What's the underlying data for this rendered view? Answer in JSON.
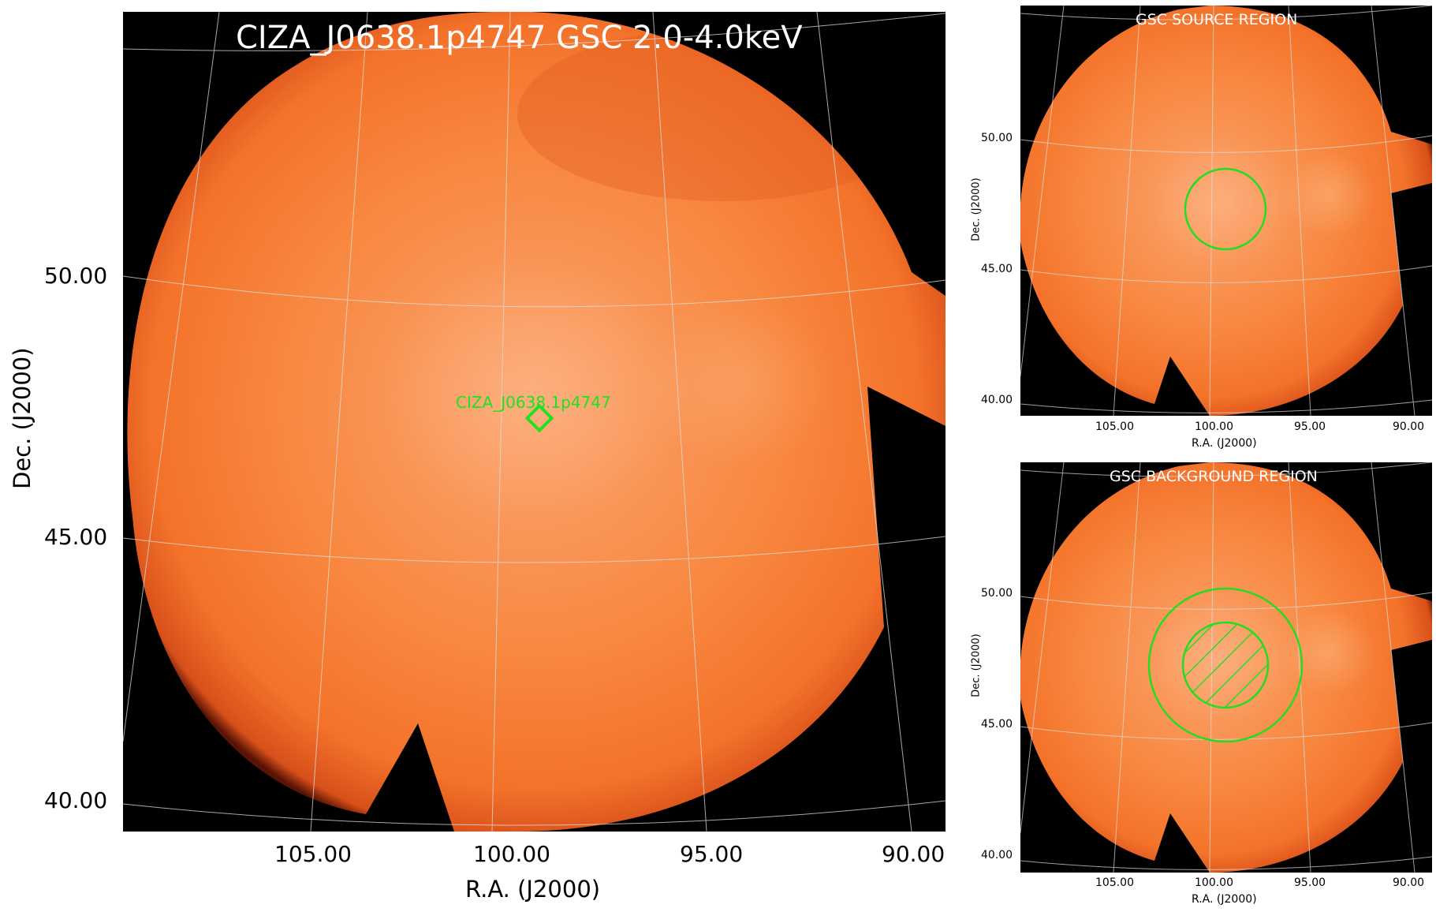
{
  "main": {
    "title": "CIZA_J0638.1p4747 GSC 2.0-4.0keV",
    "source_label": "CIZA_J0638.1p4747",
    "xlabel": "R.A. (J2000)",
    "ylabel": "Dec. (J2000)",
    "xticks": [
      "105.00",
      "100.00",
      "95.00",
      "90.00"
    ],
    "yticks": [
      "50.00",
      "45.00",
      "40.00"
    ]
  },
  "source_panel": {
    "title": "GSC SOURCE REGION",
    "xlabel": "R.A. (J2000)",
    "ylabel": "Dec. (J2000)",
    "xticks": [
      "105.00",
      "100.00",
      "95.00",
      "90.00"
    ],
    "yticks": [
      "50.00",
      "45.00",
      "40.00"
    ]
  },
  "background_panel": {
    "title": "GSC BACKGROUND REGION",
    "xlabel": "R.A. (J2000)",
    "ylabel": "Dec. (J2000)",
    "xticks": [
      "105.00",
      "100.00",
      "95.00",
      "90.00"
    ],
    "yticks": [
      "50.00",
      "45.00",
      "40.00"
    ]
  },
  "colors": {
    "background": "#000000",
    "map_orange": "#f7782c",
    "map_center": "#fba068",
    "region_green": "#22dd22",
    "grid": "#dddddd"
  }
}
